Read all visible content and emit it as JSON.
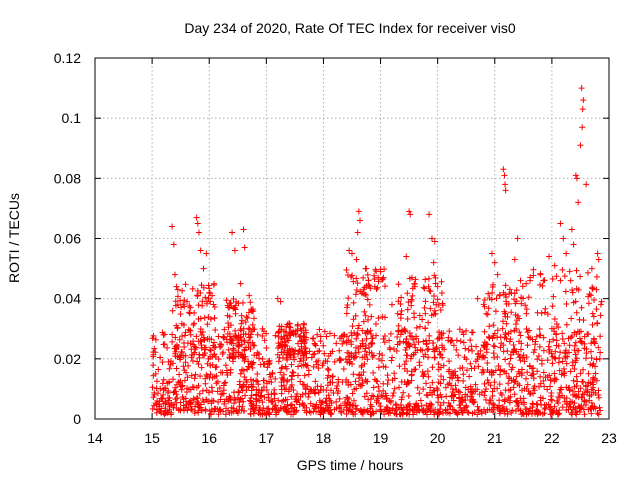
{
  "chart_data": {
    "type": "scatter",
    "title": "Day 234 of 2020, Rate Of TEC Index for receiver vis0",
    "xlabel": "GPS time / hours",
    "ylabel": "ROTI / TECUs",
    "xlim": [
      14,
      23
    ],
    "ylim": [
      0,
      0.12
    ],
    "xticks": [
      "14",
      "15",
      "16",
      "17",
      "18",
      "19",
      "20",
      "21",
      "22",
      "23"
    ],
    "yticks": [
      "0",
      "0.02",
      "0.04",
      "0.06",
      "0.08",
      "0.1",
      "0.12"
    ],
    "grid": true,
    "marker": "+",
    "color": "#ff0000",
    "series": [
      {
        "name": "ROTI",
        "data_range_x": [
          15.0,
          22.85
        ],
        "bulk_range_y": [
          0.002,
          0.03
        ],
        "points": [
          [
            15.35,
            0.064
          ],
          [
            15.38,
            0.058
          ],
          [
            15.4,
            0.048
          ],
          [
            15.45,
            0.043
          ],
          [
            15.36,
            0.036
          ],
          [
            15.78,
            0.067
          ],
          [
            15.8,
            0.065
          ],
          [
            15.82,
            0.062
          ],
          [
            15.85,
            0.056
          ],
          [
            15.95,
            0.055
          ],
          [
            16.0,
            0.042
          ],
          [
            16.05,
            0.041
          ],
          [
            15.9,
            0.05
          ],
          [
            16.4,
            0.062
          ],
          [
            16.45,
            0.056
          ],
          [
            16.6,
            0.063
          ],
          [
            16.62,
            0.057
          ],
          [
            16.55,
            0.045
          ],
          [
            16.7,
            0.041
          ],
          [
            17.2,
            0.04
          ],
          [
            17.25,
            0.039
          ],
          [
            17.6,
            0.03
          ],
          [
            18.45,
            0.056
          ],
          [
            18.5,
            0.055
          ],
          [
            18.62,
            0.069
          ],
          [
            18.64,
            0.066
          ],
          [
            18.6,
            0.062
          ],
          [
            18.58,
            0.053
          ],
          [
            18.75,
            0.05
          ],
          [
            18.9,
            0.044
          ],
          [
            19.0,
            0.049
          ],
          [
            19.05,
            0.047
          ],
          [
            19.2,
            0.038
          ],
          [
            19.3,
            0.035
          ],
          [
            19.5,
            0.069
          ],
          [
            19.52,
            0.068
          ],
          [
            19.45,
            0.054
          ],
          [
            19.55,
            0.047
          ],
          [
            19.6,
            0.044
          ],
          [
            19.85,
            0.068
          ],
          [
            19.9,
            0.06
          ],
          [
            19.95,
            0.059
          ],
          [
            19.93,
            0.052
          ],
          [
            20.0,
            0.044
          ],
          [
            20.7,
            0.04
          ],
          [
            20.85,
            0.035
          ],
          [
            20.95,
            0.055
          ],
          [
            21.0,
            0.052
          ],
          [
            21.05,
            0.048
          ],
          [
            21.15,
            0.083
          ],
          [
            21.17,
            0.081
          ],
          [
            21.19,
            0.076
          ],
          [
            21.18,
            0.078
          ],
          [
            21.4,
            0.06
          ],
          [
            21.35,
            0.053
          ],
          [
            21.45,
            0.046
          ],
          [
            21.55,
            0.045
          ],
          [
            21.8,
            0.048
          ],
          [
            21.85,
            0.046
          ],
          [
            21.95,
            0.054
          ],
          [
            22.05,
            0.051
          ],
          [
            22.15,
            0.065
          ],
          [
            22.2,
            0.06
          ],
          [
            22.25,
            0.055
          ],
          [
            22.35,
            0.063
          ],
          [
            22.38,
            0.058
          ],
          [
            22.42,
            0.081
          ],
          [
            22.44,
            0.08
          ],
          [
            22.46,
            0.072
          ],
          [
            22.52,
            0.11
          ],
          [
            22.55,
            0.106
          ],
          [
            22.54,
            0.103
          ],
          [
            22.53,
            0.097
          ],
          [
            22.5,
            0.091
          ],
          [
            22.6,
            0.078
          ],
          [
            22.7,
            0.05
          ],
          [
            22.8,
            0.055
          ],
          [
            22.82,
            0.053
          ],
          [
            22.78,
            0.043
          ]
        ]
      }
    ]
  }
}
